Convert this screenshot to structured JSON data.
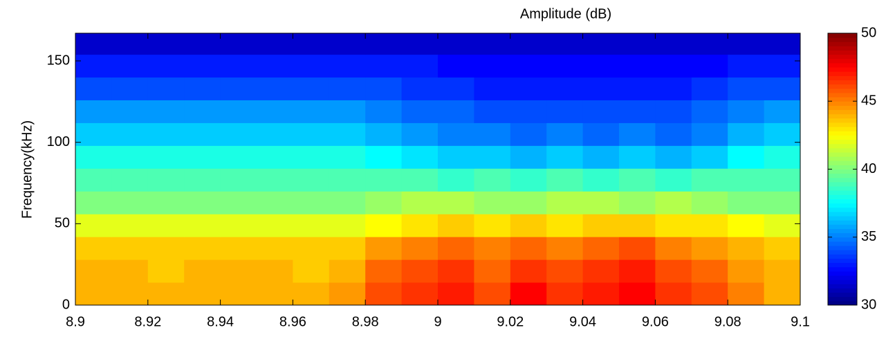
{
  "chart_data": {
    "type": "heatmap",
    "title": "Amplitude (dB)",
    "y_label": "Frequency(kHz)",
    "colormap": "jet",
    "xbins": [
      8.9,
      8.91,
      8.92,
      8.93,
      8.94,
      8.95,
      8.96,
      8.97,
      8.98,
      8.99,
      9.0,
      9.01,
      9.02,
      9.03,
      9.04,
      9.05,
      9.06,
      9.07,
      9.08,
      9.09,
      9.1
    ],
    "ybins": [
      0,
      14,
      28,
      42,
      56,
      70,
      84,
      98,
      112,
      126,
      140,
      154,
      167
    ],
    "values": [
      [
        44,
        44,
        44,
        44,
        44,
        44,
        44,
        44.5,
        46,
        46.5,
        47,
        46,
        47.5,
        46.5,
        47,
        47.5,
        46.5,
        46,
        45,
        44
      ],
      [
        44,
        44,
        43.5,
        44,
        44,
        44,
        43.5,
        44,
        45.5,
        46,
        46.5,
        45.5,
        46.5,
        46,
        46.5,
        47,
        46,
        45.5,
        44.5,
        44
      ],
      [
        43.5,
        43.5,
        43.5,
        43.5,
        43.5,
        43.5,
        43.5,
        43.5,
        44.5,
        45,
        45.5,
        45,
        45.5,
        45,
        45.5,
        46,
        45,
        44.5,
        44,
        43.5
      ],
      [
        42,
        42,
        42,
        42,
        42,
        42,
        42,
        42,
        42.5,
        43,
        43.5,
        43,
        43.5,
        43,
        43.5,
        43.5,
        43,
        43,
        42.5,
        42
      ],
      [
        40,
        40,
        40,
        40,
        40,
        40,
        40,
        40,
        40.5,
        41,
        41,
        40.5,
        40.5,
        41,
        41,
        40.5,
        41,
        40.5,
        40,
        40
      ],
      [
        39,
        39,
        39,
        39,
        39,
        39,
        39,
        39,
        39,
        39,
        38.5,
        39,
        38.5,
        39,
        38.5,
        39,
        38.5,
        39,
        39,
        39
      ],
      [
        38,
        38,
        38,
        38,
        38,
        38,
        38,
        38,
        37.5,
        37,
        36.5,
        36.5,
        36,
        36.5,
        36,
        36.5,
        36,
        36.5,
        37.5,
        38
      ],
      [
        36.5,
        36.5,
        36.5,
        36.5,
        36.5,
        36.5,
        36.5,
        36.5,
        36,
        35.5,
        35,
        35,
        34.5,
        35,
        34.5,
        35,
        34.5,
        35,
        36,
        36.5
      ],
      [
        35.5,
        35.5,
        35.5,
        35.5,
        35.5,
        35.5,
        35.5,
        35.5,
        35,
        34.5,
        34.5,
        34,
        34,
        34,
        34,
        34,
        34,
        34.5,
        35,
        35.5
      ],
      [
        34,
        34,
        34,
        34,
        34,
        34,
        34,
        34,
        34,
        33.5,
        33.5,
        33,
        33,
        33,
        33,
        33,
        33,
        33.5,
        34,
        34
      ],
      [
        33,
        33,
        33,
        33,
        33,
        33,
        33,
        33,
        33,
        33,
        32.5,
        32.5,
        32.5,
        32.5,
        32.5,
        32.5,
        32.5,
        32.5,
        33,
        33
      ],
      [
        31.5,
        31.5,
        31.5,
        31.5,
        31.5,
        31.5,
        31.5,
        31.5,
        31.5,
        31.5,
        31.5,
        31.5,
        31.5,
        31.5,
        31.5,
        31.5,
        31.5,
        31.5,
        31.5,
        31.5
      ]
    ],
    "xlim": [
      8.9,
      9.1
    ],
    "xticks": [
      8.9,
      8.92,
      8.94,
      8.96,
      8.98,
      9,
      9.02,
      9.04,
      9.06,
      9.08,
      9.1
    ],
    "ylim": [
      0,
      167
    ],
    "yticks": [
      0,
      50,
      100,
      150
    ],
    "clim": [
      30,
      50
    ],
    "cticks": [
      30,
      35,
      40,
      45,
      50
    ]
  }
}
